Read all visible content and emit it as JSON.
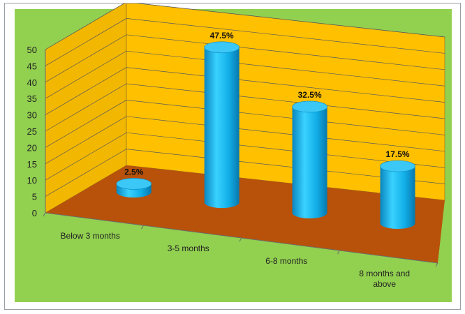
{
  "chart_data": {
    "type": "bar",
    "style": "3d-cylinder",
    "categories": [
      "Below 3 months",
      "3-5 months",
      "6-8 months",
      "8 months and above"
    ],
    "values": [
      2.5,
      47.5,
      32.5,
      17.5
    ],
    "data_labels": [
      "2.5%",
      "47.5%",
      "32.5%",
      "17.5%"
    ],
    "y_ticks": [
      "0",
      "5",
      "10",
      "15",
      "20",
      "25",
      "30",
      "35",
      "40",
      "45",
      "50"
    ],
    "ylim": [
      0,
      50
    ],
    "grid": true,
    "legend": "none",
    "title": "",
    "xlabel": "",
    "ylabel": ""
  },
  "colors": {
    "background": "#92d050",
    "back_wall": "#ffc000",
    "side_wall": "#f2b700",
    "floor": "#b8520a",
    "floor_dark": "#8f3d05",
    "bar": "#0fb3f0",
    "bar_top": "#3cc8f6",
    "gridline": "#5a5a5a"
  }
}
